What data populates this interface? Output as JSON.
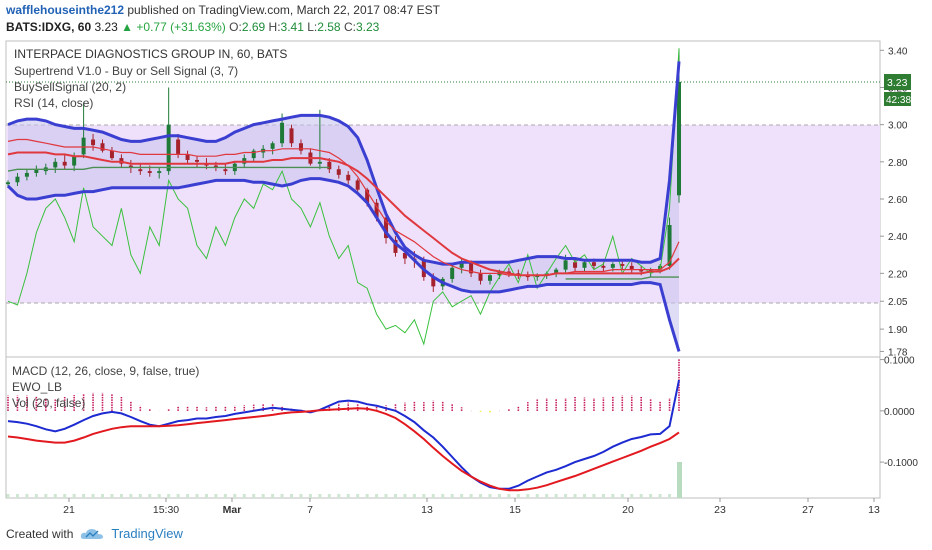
{
  "header": {
    "username": "wafflehouseinthe212",
    "published": "published on TradingView.com, March 22, 2017 08:47 EST",
    "symbol": "BATS:IDXG, 60",
    "last": "3.23",
    "change": "+0.77 (+31.63%)",
    "o_label": "O:",
    "o": "2.69",
    "h_label": "H:",
    "h": "3.41",
    "l_label": "L:",
    "l": "2.58",
    "c_label": "C:",
    "c": "3.23"
  },
  "legend": {
    "title": "INTERPACE DIAGNOSTICS GROUP IN, 60, BATS",
    "line1": "Supertrend V1.0 - Buy or Sell Signal (3, 7)",
    "line2": "BuySellSignal (20, 2)",
    "line3": "RSI (14, close)",
    "sub1": "MACD (12, 26, close, 9, false, true)",
    "sub2": "EWO_LB",
    "sub3": "Vol (20, false)"
  },
  "price_badges": {
    "price": "3.23",
    "countdown": "42:38"
  },
  "x_ticks": [
    "21",
    "15:30",
    "Mar",
    "7",
    "13",
    "15",
    "20",
    "23",
    "27",
    "13"
  ],
  "footer": {
    "created": "Created with",
    "brand": "TradingView"
  },
  "colors": {
    "bb": "#3b3fd1",
    "ma": "#e0383e",
    "rsi": "#39c13d",
    "st": "#4c8f52",
    "up": "#1f7a38",
    "down": "#a5222d",
    "macd": "#1d2bd1",
    "signal": "#e2191f",
    "hist_neg": "#f2ef2c",
    "hist_pos": "#c4175a"
  },
  "chart_data": [
    {
      "type": "line",
      "title": "INTERPACE DIAGNOSTICS GROUP IN, 60, BATS",
      "ylim": [
        1.75,
        3.45
      ],
      "y_ticks": [
        3.4,
        3.2,
        3.0,
        2.8,
        2.6,
        2.4,
        2.2,
        2.05,
        1.9,
        1.78
      ],
      "last_price": 3.23,
      "candles": [
        [
          2.68,
          2.7,
          2.66,
          2.69
        ],
        [
          2.69,
          2.74,
          2.67,
          2.72
        ],
        [
          2.72,
          2.76,
          2.7,
          2.74
        ],
        [
          2.74,
          2.78,
          2.72,
          2.76
        ],
        [
          2.75,
          2.79,
          2.73,
          2.77
        ],
        [
          2.77,
          2.82,
          2.74,
          2.8
        ],
        [
          2.8,
          2.84,
          2.76,
          2.78
        ],
        [
          2.78,
          2.85,
          2.75,
          2.83
        ],
        [
          2.84,
          3.12,
          2.82,
          2.93
        ],
        [
          2.92,
          2.95,
          2.86,
          2.89
        ],
        [
          2.9,
          2.92,
          2.85,
          2.86
        ],
        [
          2.86,
          2.88,
          2.81,
          2.82
        ],
        [
          2.82,
          2.84,
          2.77,
          2.79
        ],
        [
          2.78,
          2.81,
          2.74,
          2.77
        ],
        [
          2.76,
          2.79,
          2.73,
          2.75
        ],
        [
          2.75,
          2.78,
          2.72,
          2.74
        ],
        [
          2.74,
          2.77,
          2.71,
          2.75
        ],
        [
          2.75,
          3.2,
          2.73,
          3.0
        ],
        [
          2.92,
          2.95,
          2.82,
          2.84
        ],
        [
          2.84,
          2.86,
          2.79,
          2.81
        ],
        [
          2.81,
          2.83,
          2.77,
          2.8
        ],
        [
          2.79,
          2.82,
          2.76,
          2.78
        ],
        [
          2.78,
          2.8,
          2.75,
          2.77
        ],
        [
          2.76,
          2.79,
          2.73,
          2.75
        ],
        [
          2.75,
          2.8,
          2.73,
          2.79
        ],
        [
          2.79,
          2.84,
          2.77,
          2.82
        ],
        [
          2.82,
          2.87,
          2.8,
          2.86
        ],
        [
          2.85,
          2.89,
          2.82,
          2.87
        ],
        [
          2.87,
          2.91,
          2.84,
          2.9
        ],
        [
          2.9,
          3.06,
          2.88,
          3.01
        ],
        [
          2.98,
          3.0,
          2.88,
          2.9
        ],
        [
          2.9,
          2.92,
          2.84,
          2.86
        ],
        [
          2.85,
          2.87,
          2.78,
          2.79
        ],
        [
          2.79,
          3.08,
          2.76,
          2.8
        ],
        [
          2.8,
          2.82,
          2.74,
          2.76
        ],
        [
          2.76,
          2.78,
          2.71,
          2.73
        ],
        [
          2.73,
          2.75,
          2.68,
          2.7
        ],
        [
          2.7,
          2.71,
          2.64,
          2.65
        ],
        [
          2.65,
          2.66,
          2.56,
          2.58
        ],
        [
          2.58,
          2.6,
          2.48,
          2.5
        ],
        [
          2.5,
          2.52,
          2.36,
          2.39
        ],
        [
          2.38,
          2.4,
          2.29,
          2.31
        ],
        [
          2.31,
          2.33,
          2.25,
          2.28
        ],
        [
          2.28,
          2.32,
          2.23,
          2.27
        ],
        [
          2.27,
          2.29,
          2.16,
          2.18
        ],
        [
          2.18,
          2.2,
          2.1,
          2.13
        ],
        [
          2.13,
          2.18,
          2.11,
          2.17
        ],
        [
          2.17,
          2.24,
          2.15,
          2.23
        ],
        [
          2.23,
          2.28,
          2.2,
          2.26
        ],
        [
          2.26,
          2.27,
          2.18,
          2.2
        ],
        [
          2.2,
          2.22,
          2.14,
          2.16
        ],
        [
          2.16,
          2.2,
          2.14,
          2.19
        ],
        [
          2.19,
          2.22,
          2.17,
          2.21
        ],
        [
          2.21,
          2.23,
          2.18,
          2.2
        ],
        [
          2.2,
          2.22,
          2.17,
          2.19
        ],
        [
          2.19,
          2.21,
          2.16,
          2.18
        ],
        [
          2.18,
          2.2,
          2.16,
          2.19
        ],
        [
          2.19,
          2.21,
          2.17,
          2.2
        ],
        [
          2.2,
          2.23,
          2.18,
          2.22
        ],
        [
          2.22,
          2.3,
          2.2,
          2.27
        ],
        [
          2.26,
          2.28,
          2.21,
          2.23
        ],
        [
          2.23,
          2.27,
          2.21,
          2.26
        ],
        [
          2.26,
          2.28,
          2.22,
          2.24
        ],
        [
          2.24,
          2.26,
          2.21,
          2.23
        ],
        [
          2.23,
          2.26,
          2.21,
          2.25
        ],
        [
          2.25,
          2.27,
          2.22,
          2.24
        ],
        [
          2.24,
          2.26,
          2.2,
          2.22
        ],
        [
          2.22,
          2.24,
          2.19,
          2.21
        ],
        [
          2.21,
          2.23,
          2.18,
          2.22
        ],
        [
          2.22,
          2.25,
          2.2,
          2.24
        ],
        [
          2.24,
          2.5,
          2.22,
          2.46
        ],
        [
          2.62,
          3.41,
          2.58,
          3.23
        ]
      ],
      "bb_upper": [
        3.0,
        3.02,
        3.03,
        3.03,
        3.02,
        3.0,
        2.99,
        2.98,
        2.98,
        2.97,
        2.96,
        2.94,
        2.92,
        2.91,
        2.91,
        2.92,
        2.93,
        2.94,
        2.94,
        2.93,
        2.92,
        2.91,
        2.91,
        2.93,
        2.96,
        2.98,
        3.0,
        3.01,
        3.02,
        3.03,
        3.04,
        3.05,
        3.05,
        3.05,
        3.04,
        3.02,
        2.99,
        2.93,
        2.81,
        2.66,
        2.52,
        2.42,
        2.34,
        2.3,
        2.27,
        2.26,
        2.25,
        2.25,
        2.26,
        2.26,
        2.26,
        2.26,
        2.26,
        2.26,
        2.27,
        2.28,
        2.29,
        2.29,
        2.29,
        2.28,
        2.28,
        2.27,
        2.27,
        2.27,
        2.27,
        2.27,
        2.27,
        2.26,
        2.26,
        2.28,
        2.7,
        3.34
      ],
      "bb_lower": [
        2.67,
        2.62,
        2.6,
        2.6,
        2.61,
        2.62,
        2.62,
        2.63,
        2.64,
        2.64,
        2.65,
        2.66,
        2.66,
        2.66,
        2.66,
        2.66,
        2.66,
        2.66,
        2.66,
        2.67,
        2.68,
        2.69,
        2.7,
        2.7,
        2.7,
        2.7,
        2.69,
        2.69,
        2.68,
        2.67,
        2.68,
        2.7,
        2.71,
        2.71,
        2.7,
        2.69,
        2.67,
        2.63,
        2.58,
        2.5,
        2.42,
        2.36,
        2.32,
        2.27,
        2.22,
        2.18,
        2.15,
        2.13,
        2.11,
        2.1,
        2.1,
        2.1,
        2.1,
        2.11,
        2.12,
        2.13,
        2.13,
        2.14,
        2.14,
        2.14,
        2.14,
        2.14,
        2.14,
        2.14,
        2.14,
        2.14,
        2.14,
        2.15,
        2.15,
        2.14,
        1.95,
        1.78
      ],
      "ma20": [
        2.84,
        2.85,
        2.85,
        2.85,
        2.85,
        2.84,
        2.84,
        2.83,
        2.83,
        2.82,
        2.81,
        2.8,
        2.8,
        2.79,
        2.79,
        2.79,
        2.79,
        2.79,
        2.79,
        2.79,
        2.79,
        2.79,
        2.79,
        2.79,
        2.8,
        2.8,
        2.8,
        2.8,
        2.81,
        2.81,
        2.82,
        2.82,
        2.82,
        2.82,
        2.81,
        2.8,
        2.78,
        2.75,
        2.71,
        2.66,
        2.61,
        2.56,
        2.51,
        2.47,
        2.43,
        2.39,
        2.35,
        2.31,
        2.28,
        2.26,
        2.24,
        2.22,
        2.21,
        2.2,
        2.19,
        2.19,
        2.19,
        2.19,
        2.2,
        2.2,
        2.2,
        2.2,
        2.2,
        2.2,
        2.2,
        2.2,
        2.2,
        2.2,
        2.21,
        2.21,
        2.23,
        2.28
      ],
      "ma_fast": [
        2.91,
        2.92,
        2.92,
        2.91,
        2.9,
        2.89,
        2.88,
        2.88,
        2.88,
        2.88,
        2.87,
        2.86,
        2.85,
        2.85,
        2.84,
        2.84,
        2.84,
        2.84,
        2.84,
        2.84,
        2.83,
        2.83,
        2.83,
        2.84,
        2.84,
        2.85,
        2.85,
        2.86,
        2.86,
        2.87,
        2.87,
        2.87,
        2.87,
        2.86,
        2.85,
        2.82,
        2.78,
        2.72,
        2.64,
        2.56,
        2.48,
        2.43,
        2.4,
        2.37,
        2.33,
        2.29,
        2.26,
        2.24,
        2.22,
        2.21,
        2.2,
        2.2,
        2.2,
        2.19,
        2.19,
        2.19,
        2.19,
        2.19,
        2.2,
        2.2,
        2.21,
        2.21,
        2.21,
        2.21,
        2.22,
        2.22,
        2.22,
        2.22,
        2.22,
        2.22,
        2.26,
        2.37
      ],
      "supertrend": [
        2.75,
        2.76,
        2.76,
        2.76,
        2.76,
        2.76,
        2.76,
        2.76,
        2.76,
        2.77,
        2.77,
        2.77,
        2.77,
        2.77,
        2.77,
        2.77,
        2.77,
        2.77,
        2.77,
        2.77,
        2.77,
        2.77,
        2.77,
        2.77,
        2.77,
        2.77,
        2.77,
        2.77,
        2.77,
        2.77,
        2.77,
        2.77,
        2.77,
        2.77,
        2.77,
        null,
        null,
        null,
        null,
        null,
        null,
        null,
        null,
        null,
        null,
        null,
        null,
        null,
        null,
        null,
        null,
        null,
        null,
        null,
        null,
        null,
        null,
        null,
        null,
        2.17,
        2.17,
        2.17,
        2.17,
        2.17,
        2.17,
        2.17,
        2.17,
        2.17,
        2.18,
        2.18,
        2.18,
        2.18
      ],
      "rsi_scaled": [
        2.05,
        2.03,
        2.2,
        2.42,
        2.55,
        2.6,
        2.5,
        2.37,
        2.66,
        2.45,
        2.4,
        2.35,
        2.55,
        2.3,
        2.2,
        2.45,
        2.35,
        2.7,
        2.6,
        2.55,
        2.35,
        2.28,
        2.45,
        2.35,
        2.5,
        2.6,
        2.55,
        2.68,
        2.65,
        2.75,
        2.6,
        2.55,
        2.45,
        2.58,
        2.4,
        2.28,
        2.35,
        2.15,
        2.12,
        1.98,
        1.9,
        1.92,
        1.88,
        1.95,
        1.82,
        2.05,
        2.1,
        2.02,
        2.05,
        2.08,
        1.98,
        2.1,
        2.18,
        2.25,
        2.15,
        2.3,
        2.12,
        2.2,
        2.28,
        2.35,
        2.26,
        2.3,
        2.22,
        2.25,
        2.4,
        2.2,
        2.28,
        2.24,
        2.2,
        2.22,
        2.55,
        3.41
      ]
    },
    {
      "type": "line",
      "title": "MACD (12, 26, close, 9, false, true)",
      "ylim": [
        -0.17,
        0.105
      ],
      "y_ticks": [
        0.1,
        0.0,
        -0.1
      ],
      "macd": [
        -0.02,
        -0.022,
        -0.025,
        -0.03,
        -0.036,
        -0.04,
        -0.035,
        -0.027,
        -0.018,
        -0.01,
        -0.005,
        -0.002,
        -0.005,
        -0.012,
        -0.02,
        -0.027,
        -0.03,
        -0.025,
        -0.02,
        -0.018,
        -0.015,
        -0.015,
        -0.012,
        -0.01,
        -0.006,
        -0.003,
        0.0,
        0.003,
        0.006,
        0.004,
        0.002,
        0.0,
        -0.003,
        0.002,
        0.01,
        0.018,
        0.02,
        0.018,
        0.013,
        0.01,
        0.005,
        0.0,
        -0.01,
        -0.022,
        -0.038,
        -0.052,
        -0.07,
        -0.09,
        -0.11,
        -0.128,
        -0.14,
        -0.149,
        -0.152,
        -0.152,
        -0.146,
        -0.136,
        -0.128,
        -0.12,
        -0.115,
        -0.108,
        -0.1,
        -0.094,
        -0.088,
        -0.08,
        -0.07,
        -0.062,
        -0.055,
        -0.051,
        -0.046,
        -0.045,
        -0.03,
        0.06
      ],
      "signal": [
        -0.05,
        -0.052,
        -0.055,
        -0.058,
        -0.06,
        -0.062,
        -0.062,
        -0.058,
        -0.052,
        -0.045,
        -0.04,
        -0.035,
        -0.032,
        -0.03,
        -0.03,
        -0.03,
        -0.03,
        -0.029,
        -0.028,
        -0.026,
        -0.024,
        -0.022,
        -0.02,
        -0.018,
        -0.016,
        -0.014,
        -0.012,
        -0.01,
        -0.008,
        -0.005,
        -0.003,
        -0.002,
        -0.001,
        0.001,
        0.002,
        0.003,
        0.004,
        0.005,
        0.004,
        0.0,
        -0.006,
        -0.014,
        -0.026,
        -0.04,
        -0.055,
        -0.072,
        -0.088,
        -0.103,
        -0.117,
        -0.128,
        -0.138,
        -0.146,
        -0.152,
        -0.155,
        -0.155,
        -0.153,
        -0.15,
        -0.145,
        -0.139,
        -0.133,
        -0.127,
        -0.12,
        -0.113,
        -0.106,
        -0.099,
        -0.092,
        -0.085,
        -0.078,
        -0.07,
        -0.063,
        -0.055,
        -0.042
      ]
    }
  ]
}
